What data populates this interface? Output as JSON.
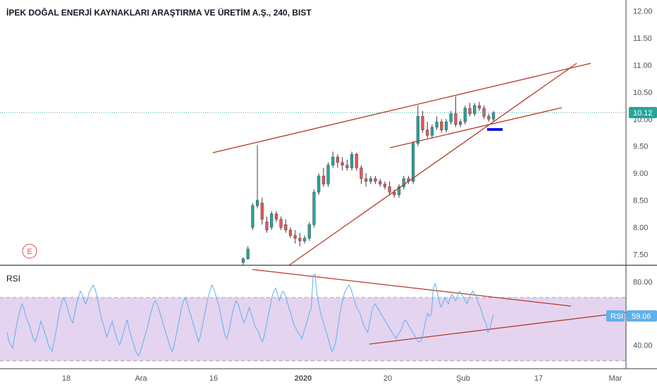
{
  "colors": {
    "background": "#ffffff",
    "axis_text": "#4a4f5a",
    "grid": "#c8cbd2",
    "price_line": "#26a69a",
    "up_candle": "#26a69a",
    "down_candle": "#ef5350",
    "trendline": "#b33a2a",
    "rsi_line": "#5fb0ee",
    "rsi_band": "#e4d4f0",
    "rsi_band_edge": "#a0a0a8",
    "rsi_badge": "#5fb0ee",
    "price_badge": "#26a69a",
    "support_marker": "#1414e6",
    "event_marker": "#e24a4a"
  },
  "chart_data": [
    {
      "type": "candlestick",
      "title": "İPEK DOĞAL ENERJİ KAYNAKLARI ARAŞTIRMA VE ÜRETİM A.Ş., 240, BIST",
      "ylim": [
        7.3,
        12.2
      ],
      "y_ticks": [
        7.5,
        8.0,
        8.5,
        9.0,
        9.5,
        10.0,
        10.5,
        11.0,
        11.5,
        12.0
      ],
      "y_tick_labels": [
        "7.50",
        "8.00",
        "8.50",
        "9.00",
        "9.50",
        "10.00",
        "10.50",
        "11.00",
        "11.50",
        "12.00"
      ],
      "x_ticks": [
        "18",
        "Ara",
        "16",
        "2020",
        "20",
        "Şub",
        "17",
        "Mar"
      ],
      "last_price": 10.12,
      "last_price_label": "10.12",
      "event_marker_label": "E",
      "ohlc": [
        [
          7.35,
          7.45,
          7.3,
          7.42
        ],
        [
          7.42,
          7.65,
          7.4,
          7.6
        ],
        [
          8.0,
          8.45,
          7.95,
          8.4
        ],
        [
          8.4,
          9.52,
          8.35,
          8.5
        ],
        [
          8.45,
          8.55,
          8.05,
          8.15
        ],
        [
          8.1,
          8.2,
          7.9,
          7.95
        ],
        [
          8.0,
          8.3,
          7.95,
          8.25
        ],
        [
          8.25,
          8.3,
          8.1,
          8.15
        ],
        [
          8.15,
          8.2,
          7.95,
          8.0
        ],
        [
          8.05,
          8.15,
          7.9,
          7.95
        ],
        [
          7.95,
          8.0,
          7.8,
          7.85
        ],
        [
          7.85,
          7.95,
          7.7,
          7.8
        ],
        [
          7.8,
          7.9,
          7.65,
          7.75
        ],
        [
          7.75,
          7.85,
          7.7,
          7.8
        ],
        [
          7.8,
          8.1,
          7.75,
          8.05
        ],
        [
          8.05,
          8.7,
          8.0,
          8.65
        ],
        [
          8.65,
          9.0,
          8.6,
          8.95
        ],
        [
          8.95,
          9.1,
          8.75,
          8.8
        ],
        [
          8.8,
          9.2,
          8.75,
          9.15
        ],
        [
          9.15,
          9.4,
          9.1,
          9.3
        ],
        [
          9.3,
          9.35,
          9.1,
          9.2
        ],
        [
          9.2,
          9.3,
          9.05,
          9.15
        ],
        [
          9.15,
          9.25,
          9.05,
          9.1
        ],
        [
          9.1,
          9.4,
          9.05,
          9.35
        ],
        [
          9.35,
          9.38,
          9.05,
          9.1
        ],
        [
          9.1,
          9.15,
          8.8,
          8.9
        ],
        [
          8.9,
          9.0,
          8.75,
          8.85
        ],
        [
          8.85,
          8.95,
          8.8,
          8.9
        ],
        [
          8.9,
          8.95,
          8.8,
          8.85
        ],
        [
          8.85,
          8.9,
          8.75,
          8.8
        ],
        [
          8.8,
          8.85,
          8.7,
          8.75
        ],
        [
          8.75,
          8.85,
          8.6,
          8.65
        ],
        [
          8.65,
          8.7,
          8.55,
          8.6
        ],
        [
          8.6,
          8.8,
          8.55,
          8.75
        ],
        [
          8.75,
          8.95,
          8.7,
          8.9
        ],
        [
          8.9,
          8.95,
          8.8,
          8.85
        ],
        [
          8.85,
          9.6,
          8.8,
          9.55
        ],
        [
          9.55,
          10.25,
          9.5,
          10.05
        ],
        [
          10.05,
          10.15,
          9.75,
          9.8
        ],
        [
          9.8,
          9.95,
          9.65,
          9.7
        ],
        [
          9.7,
          9.9,
          9.65,
          9.85
        ],
        [
          9.85,
          10.05,
          9.8,
          9.95
        ],
        [
          9.95,
          10.0,
          9.75,
          9.8
        ],
        [
          9.8,
          10.0,
          9.75,
          9.95
        ],
        [
          9.95,
          10.15,
          9.9,
          10.1
        ],
        [
          10.1,
          10.42,
          9.85,
          9.9
        ],
        [
          9.9,
          10.0,
          9.85,
          9.95
        ],
        [
          9.95,
          10.25,
          9.9,
          10.2
        ],
        [
          10.2,
          10.3,
          10.05,
          10.1
        ],
        [
          10.1,
          10.3,
          10.05,
          10.25
        ],
        [
          10.25,
          10.32,
          10.15,
          10.2
        ],
        [
          10.2,
          10.25,
          10.0,
          10.05
        ],
        [
          10.05,
          10.1,
          9.95,
          10.0
        ],
        [
          10.0,
          10.15,
          9.95,
          10.12
        ]
      ]
    },
    {
      "type": "line",
      "title": "RSI",
      "ylim": [
        25,
        90
      ],
      "y_ticks": [
        40,
        60,
        80
      ],
      "y_tick_labels": [
        "40.00",
        "60.00",
        "80.00"
      ],
      "band": [
        30,
        70
      ],
      "last_value": 59.06,
      "badge_label": "RSI",
      "value_label": "59.06",
      "values": [
        48,
        42,
        40,
        38,
        45,
        52,
        58,
        62,
        66,
        63,
        58,
        55,
        52,
        48,
        44,
        42,
        46,
        50,
        55,
        52,
        48,
        45,
        40,
        38,
        36,
        42,
        48,
        55,
        62,
        66,
        70,
        68,
        64,
        60,
        56,
        54,
        60,
        66,
        70,
        74,
        72,
        68,
        66,
        70,
        74,
        76,
        78,
        75,
        70,
        64,
        58,
        54,
        50,
        45,
        48,
        52,
        55,
        50,
        46,
        42,
        40,
        44,
        48,
        52,
        56,
        50,
        46,
        42,
        38,
        35,
        33,
        36,
        40,
        44,
        48,
        52,
        58,
        62,
        66,
        68,
        66,
        62,
        58,
        54,
        50,
        46,
        42,
        38,
        36,
        40,
        46,
        52,
        58,
        64,
        68,
        70,
        66,
        62,
        58,
        54,
        50,
        46,
        42,
        46,
        52,
        58,
        64,
        70,
        74,
        78,
        76,
        72,
        68,
        64,
        58,
        52,
        46,
        44,
        48,
        54,
        60,
        65,
        68,
        66,
        62,
        58,
        54,
        56,
        60,
        64,
        60,
        56,
        52,
        50,
        48,
        44,
        42,
        46,
        52,
        58,
        64,
        70,
        74,
        76,
        72,
        68,
        72,
        74,
        72,
        68,
        64,
        60,
        56,
        52,
        50,
        48,
        46,
        44,
        48,
        52,
        56,
        60,
        64,
        84,
        85,
        72,
        66,
        60,
        56,
        52,
        48,
        44,
        40,
        36,
        38,
        42,
        50,
        58,
        64,
        70,
        74,
        76,
        78,
        76,
        72,
        68,
        64,
        62,
        60,
        56,
        52,
        50,
        48,
        54,
        60,
        64,
        66,
        64,
        62,
        60,
        58,
        56,
        54,
        52,
        50,
        48,
        46,
        44,
        46,
        48,
        50,
        54,
        56,
        54,
        52,
        50,
        48,
        46,
        44,
        42,
        42,
        44,
        50,
        56,
        60,
        58,
        60,
        76,
        79,
        74,
        68,
        64,
        66,
        70,
        68,
        66,
        70,
        72,
        70,
        68,
        72,
        74,
        72,
        70,
        68,
        66,
        70,
        72,
        74,
        72,
        70,
        66,
        64,
        60,
        56,
        54,
        48,
        50,
        55,
        59.06
      ]
    }
  ]
}
